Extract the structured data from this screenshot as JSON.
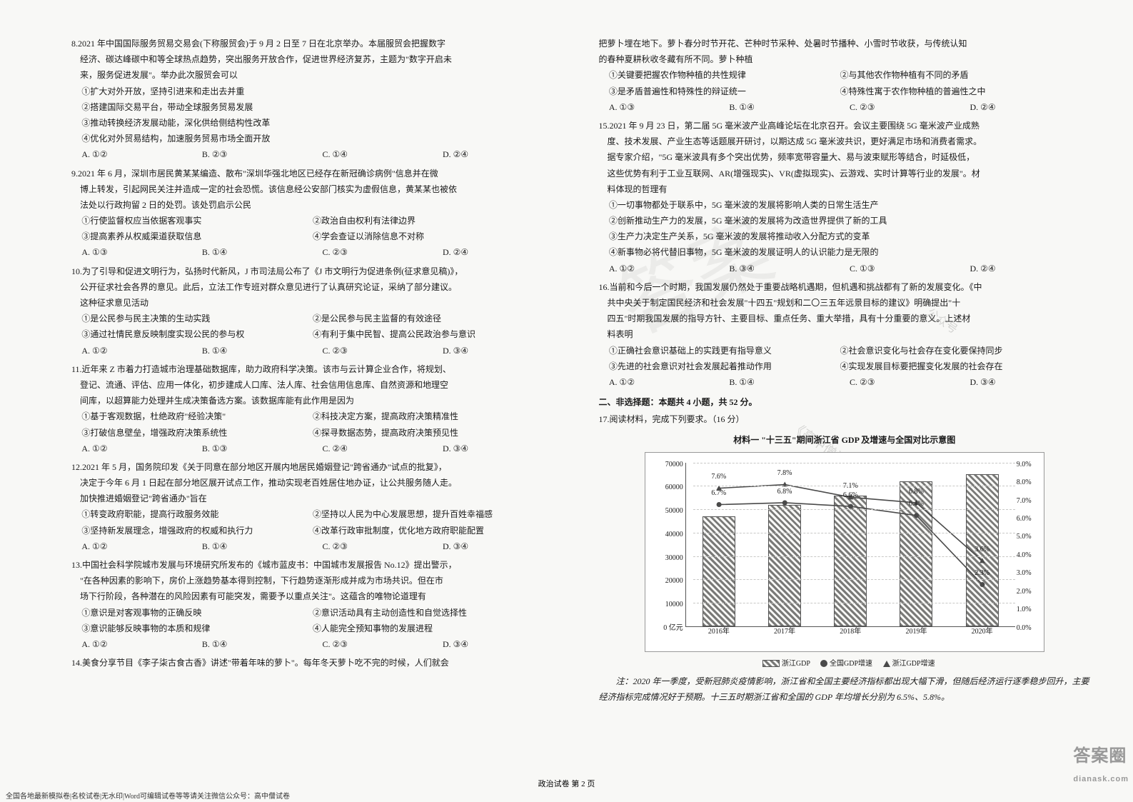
{
  "page_label": "政治试卷 第 2 页",
  "bottom_footer": "全国各地最新模拟卷|名校试卷|无水印|Word可编辑试卷等等请关注微信公众号：高中僧试卷",
  "corner_brand": "答案圈",
  "watermarks": {
    "w1": "答案",
    "w2": "《高中僧试卷》",
    "w3": "公众号"
  },
  "left": {
    "q8": {
      "stem1": "8.2021 年中国国际服务贸易交易会(下称服贸会)于 9 月 2 日至 7 日在北京举办。本届服贸会把握数字",
      "stem2": "经济、碳达峰碳中和等全球热点趋势，突出服务开放合作，促进世界经济复苏，主题为\"数字开启未",
      "stem3": "来，服务促进发展\"。举办此次服贸会可以",
      "o1": "①扩大对外开放，坚持引进来和走出去并重",
      "o2": "②搭建国际交易平台，带动全球服务贸易发展",
      "o3": "③推动转换经济发展动能，深化供给侧结构性改革",
      "o4": "④优化对外贸易结构，加速服务贸易市场全面开放",
      "A": "A. ①②",
      "B": "B. ②③",
      "C": "C. ①④",
      "D": "D. ②④"
    },
    "q9": {
      "stem1": "9.2021 年 6 月，深圳市居民黄某某编造、散布\"深圳华强北地区已经存在新冠确诊病例\"信息并在微",
      "stem2": "博上转发，引起网民关注并造成一定的社会恐慌。该信息经公安部门核实为虚假信息，黄某某也被依",
      "stem3": "法处以行政拘留 2 日的处罚。该处罚启示公民",
      "o1": "①行使监督权应当依据客观事实",
      "o2": "②政治自由权利有法律边界",
      "o3": "③提高素养从权威渠道获取信息",
      "o4": "④学会查证以消除信息不对称",
      "A": "A. ①③",
      "B": "B. ①④",
      "C": "C. ②③",
      "D": "D. ②④"
    },
    "q10": {
      "stem1": "10.为了引导和促进文明行为，弘扬时代新风，J 市司法局公布了《J 市文明行为促进条例(征求意见稿)》，",
      "stem2": "公开征求社会各界的意见。此后，立法工作专班对群众意见进行了认真研究论证，采纳了部分建议。",
      "stem3": "这种征求意见活动",
      "o1": "①是公民参与民主决策的生动实践",
      "o2": "②是公民参与民主监督的有效途径",
      "o3": "③通过社情民意反映制度实现公民的参与权",
      "o4": "④有利于集中民智、提高公民政治参与意识",
      "A": "A. ①②",
      "B": "B. ①④",
      "C": "C. ②③",
      "D": "D. ③④"
    },
    "q11": {
      "stem1": "11.近年来 Z 市着力打造城市治理基础数据库，助力政府科学决策。该市与云计算企业合作，将规划、",
      "stem2": "登记、流通、评估、应用一体化，初步建成人口库、法人库、社会信用信息库、自然资源和地理空",
      "stem3": "间库，以超算能力处理并生成决策备选方案。该数据库能有此作用是因为",
      "o1": "①基于客观数据，杜绝政府\"经验决策\"",
      "o2": "②科技决定方案，提高政府决策精准性",
      "o3": "③打破信息壁垒，增强政府决策系统性",
      "o4": "④探寻数据态势，提高政府决策预见性",
      "A": "A. ①②",
      "B": "B. ①③",
      "C": "C. ②④",
      "D": "D. ③④"
    },
    "q12": {
      "stem1": "12.2021 年 5 月，国务院印发《关于同意在部分地区开展内地居民婚姻登记\"跨省通办\"试点的批复》，",
      "stem2": "决定于今年 6 月 1 日起在部分地区展开试点工作，推动实现老百姓居住地办证，让公共服务随人走。",
      "stem3": "加快推进婚姻登记\"跨省通办\"旨在",
      "o1": "①转变政府职能，提高行政服务效能",
      "o2": "②坚持以人民为中心发展思想，提升百姓幸福感",
      "o3": "③坚持新发展理念，增强政府的权威和执行力",
      "o4": "④改革行政审批制度，优化地方政府职能配置",
      "A": "A. ①②",
      "B": "B. ①④",
      "C": "C. ②③",
      "D": "D. ③④"
    },
    "q13": {
      "stem1": "13.中国社会科学院城市发展与环境研究所发布的《城市蓝皮书：中国城市发展报告 No.12》提出警示，",
      "stem2": "\"在各种因素的影响下，房价上涨趋势基本得到控制，下行趋势逐渐形成并成为市场共识。但在市",
      "stem3": "场下行阶段，各种潜在的风险因素有可能突发，需要予以重点关注\"。这蕴含的唯物论道理有",
      "o1": "①意识是对客观事物的正确反映",
      "o2": "②意识活动具有主动创造性和自觉选择性",
      "o3": "③意识能够反映事物的本质和规律",
      "o4": "④人能完全预知事物的发展进程",
      "A": "A. ①②",
      "B": "B. ①④",
      "C": "C. ②③",
      "D": "D. ③④"
    },
    "q14": {
      "stem": "14.美食分享节目《李子柒古食古香》讲述\"带着年味的萝卜\"。每年冬天萝卜吃不完的时候，人们就会"
    }
  },
  "right": {
    "q14c": {
      "l1": "把萝卜埋在地下。萝卜春分时节开花、芒种时节采种、处暑时节播种、小雪时节收获，与传统认知",
      "l2": "的春种夏耕秋收冬藏有所不同。萝卜种植",
      "o1": "①关键要把握农作物种植的共性规律",
      "o2": "②与其他农作物种植有不同的矛盾",
      "o3": "③是矛盾普遍性和特殊性的辩证统一",
      "o4": "④特殊性寓于农作物种植的普遍性之中",
      "A": "A. ①③",
      "B": "B. ①④",
      "C": "C. ②③",
      "D": "D. ②④"
    },
    "q15": {
      "l1": "15.2021 年 9 月 23 日，第二届 5G 毫米波产业高峰论坛在北京召开。会议主要围绕 5G 毫米波产业成熟",
      "l2": "度、技术发展、产业生态等话题展开研讨，以期达成 5G 毫米波共识，更好满足市场和消费者需求。",
      "l3": "据专家介绍，\"5G 毫米波具有多个突出优势，频率宽带容量大、易与波束赋形等结合，时延极低，",
      "l4": "这些优势有利于工业互联网、AR(增强现实)、VR(虚拟现实)、云游戏、实时计算等行业的发展\"。材",
      "l5": "料体现的哲理有",
      "o1": "①一切事物都处于联系中，5G 毫米波的发展将影响人类的日常生活生产",
      "o2": "②创新推动生产力的发展，5G 毫米波的发展将为改造世界提供了新的工具",
      "o3": "③生产力决定生产关系，5G 毫米波的发展将推动收入分配方式的变革",
      "o4": "④新事物必将代替旧事物，5G 毫米波的发展证明人的认识能力是无限的",
      "A": "A. ①②",
      "B": "B. ③④",
      "C": "C. ①③",
      "D": "D. ②④"
    },
    "q16": {
      "l1": "16.当前和今后一个时期，我国发展仍然处于重要战略机遇期，但机遇和挑战都有了新的发展变化。《中",
      "l2": "共中央关于制定国民经济和社会发展\"十四五\"规划和二〇三五年远景目标的建议》明确提出\"十",
      "l3": "四五\"时期我国发展的指导方针、主要目标、重点任务、重大举措，具有十分重要的意义。上述材",
      "l4": "料表明",
      "o1": "①正确社会意识基础上的实践更有指导意义",
      "o2": "②社会意识变化与社会存在变化要保持同步",
      "o3": "③先进的社会意识对社会发展起着推动作用",
      "o4": "④实现发展目标要把握变化发展的社会存在",
      "A": "A. ①②",
      "B": "B. ①④",
      "C": "C. ②③",
      "D": "D. ③④"
    },
    "section2": "二、非选择题：本题共 4 小题，共 52 分。",
    "q17": {
      "head": "17.阅读材料，完成下列要求。（16 分）",
      "mat1": "材料一     \"十三五\"期间浙江省 GDP 及增速与全国对比示意图"
    },
    "chart": {
      "y_max": 70000,
      "y_step": 10000,
      "y2_max": 9.0,
      "y2_step": 1.0,
      "categories": [
        "2016年",
        "2017年",
        "2018年",
        "2019年",
        "2020年"
      ],
      "bars": [
        47000,
        52000,
        56000,
        62000,
        65000
      ],
      "line_national_pct": [
        6.7,
        6.8,
        6.6,
        6.1,
        2.3
      ],
      "line_zj_pct": [
        7.6,
        7.8,
        7.1,
        6.8,
        3.6
      ],
      "bar_color": "#7a7a78",
      "line1_color": "#4a4a4a",
      "line2_color": "#4a4a4a",
      "grid_color": "#c8c8c6",
      "legend": {
        "a": "浙江GDP",
        "b": "全国GDP增速",
        "c": "浙江GDP增速"
      }
    },
    "note": "注：2020 年一季度，受新冠肺炎疫情影响，浙江省和全国主要经济指标都出现大幅下滑，但随后经济运行逐季稳步回升，主要经济指标完成情况好于预期。十三五时期浙江省和全国的 GDP 年均增长分别为 6.5%、5.8%。"
  }
}
